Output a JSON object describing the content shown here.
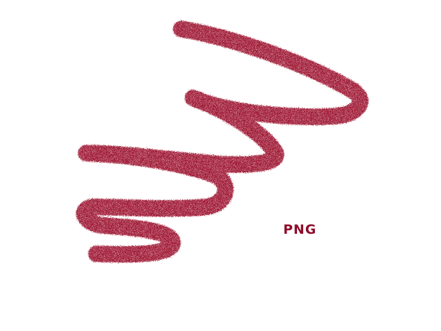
{
  "stroke": {
    "color": "#9e1732",
    "icon": "crayon-scribble"
  },
  "label": {
    "text": "PNG",
    "color": "#8e0d2a"
  }
}
